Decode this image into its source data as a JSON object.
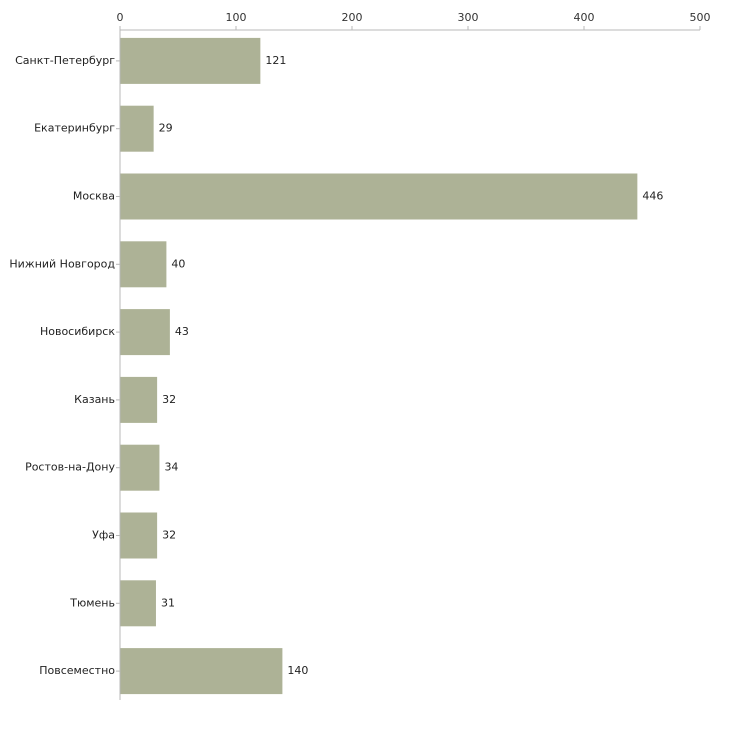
{
  "chart_data": {
    "type": "bar",
    "orientation": "horizontal",
    "title": "",
    "xlabel": "",
    "ylabel": "",
    "xlim": [
      0,
      500
    ],
    "ticks": [
      0,
      100,
      200,
      300,
      400,
      500
    ],
    "grid": false,
    "bar_color": "#adb296",
    "axis_color": "#b8b8b8",
    "categories": [
      "Санкт-Петербург",
      "Екатеринбург",
      "Москва",
      "Нижний Новгород",
      "Новосибирск",
      "Казань",
      "Ростов-на-Дону",
      "Уфа",
      "Тюмень",
      "Повсеместно"
    ],
    "values": [
      121,
      29,
      446,
      40,
      43,
      32,
      34,
      32,
      31,
      140
    ]
  }
}
